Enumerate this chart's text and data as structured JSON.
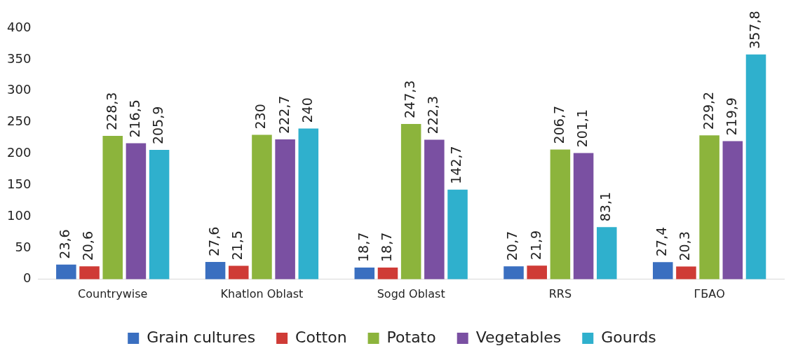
{
  "chart_data": {
    "type": "bar",
    "categories": [
      "Countrywise",
      "Khatlon Oblast",
      "Sogd Oblast",
      "RRS",
      "ГБАО"
    ],
    "series": [
      {
        "name": "Grain cultures",
        "color": "#3a6fc0",
        "values": [
          23.6,
          27.6,
          18.7,
          20.7,
          27.4
        ],
        "value_labels": [
          "23,6",
          "27,6",
          "18,7",
          "20,7",
          "27,4"
        ]
      },
      {
        "name": "Cotton",
        "color": "#cf3b36",
        "values": [
          20.6,
          21.5,
          18.7,
          21.9,
          20.3
        ],
        "value_labels": [
          "20,6",
          "21,5",
          "18,7",
          "21,9",
          "20,3"
        ]
      },
      {
        "name": "Potato",
        "color": "#8cb43c",
        "values": [
          228.3,
          230,
          247.3,
          206.7,
          229.2
        ],
        "value_labels": [
          "228,3",
          "230",
          "247,3",
          "206,7",
          "229,2"
        ]
      },
      {
        "name": "Vegetables",
        "color": "#7a50a2",
        "values": [
          216.5,
          222.7,
          222.3,
          201.1,
          219.9
        ],
        "value_labels": [
          "216,5",
          "222,7",
          "222,3",
          "201,1",
          "219,9"
        ]
      },
      {
        "name": "Gourds",
        "color": "#2fb0cd",
        "values": [
          205.9,
          240,
          142.7,
          83.1,
          357.8
        ],
        "value_labels": [
          "205,9",
          "240",
          "142,7",
          "83,1",
          "357,8"
        ]
      }
    ],
    "ylim": [
      0,
      400
    ],
    "yticks": [
      0,
      50,
      100,
      150,
      200,
      250,
      300,
      350,
      400
    ],
    "grid": false,
    "legend": "bottom"
  }
}
